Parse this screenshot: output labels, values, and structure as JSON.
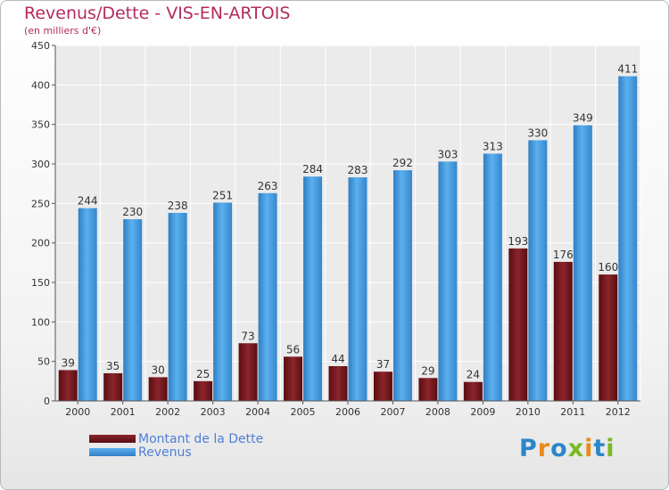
{
  "chart_data": {
    "type": "bar",
    "title": "Revenus/Dette - VIS-EN-ARTOIS",
    "subtitle": "(en milliers d'€)",
    "categories": [
      "2000",
      "2001",
      "2002",
      "2003",
      "2004",
      "2005",
      "2006",
      "2007",
      "2008",
      "2009",
      "2010",
      "2011",
      "2012"
    ],
    "series": [
      {
        "name": "Montant de la Dette",
        "color": "#7a1a1e",
        "values": [
          39,
          35,
          30,
          25,
          73,
          56,
          44,
          37,
          29,
          24,
          193,
          176,
          160
        ]
      },
      {
        "name": "Revenus",
        "color": "#4a9fe0",
        "values": [
          244,
          230,
          238,
          251,
          263,
          284,
          283,
          292,
          303,
          313,
          330,
          349,
          411
        ]
      }
    ],
    "ylim": [
      0,
      450
    ],
    "yticks": [
      0,
      50,
      100,
      150,
      200,
      250,
      300,
      350,
      400,
      450
    ],
    "grid": true,
    "legend_position": "bottom-left"
  },
  "brand": {
    "letters": [
      {
        "char": "P",
        "color": "#2a86c8"
      },
      {
        "char": "r",
        "color": "#e98a1c"
      },
      {
        "char": "o",
        "color": "#2a86c8"
      },
      {
        "char": "x",
        "color": "#7ab821"
      },
      {
        "char": "i",
        "color": "#e98a1c"
      },
      {
        "char": "t",
        "color": "#2a86c8"
      },
      {
        "char": "i",
        "color": "#7ab821"
      }
    ]
  }
}
